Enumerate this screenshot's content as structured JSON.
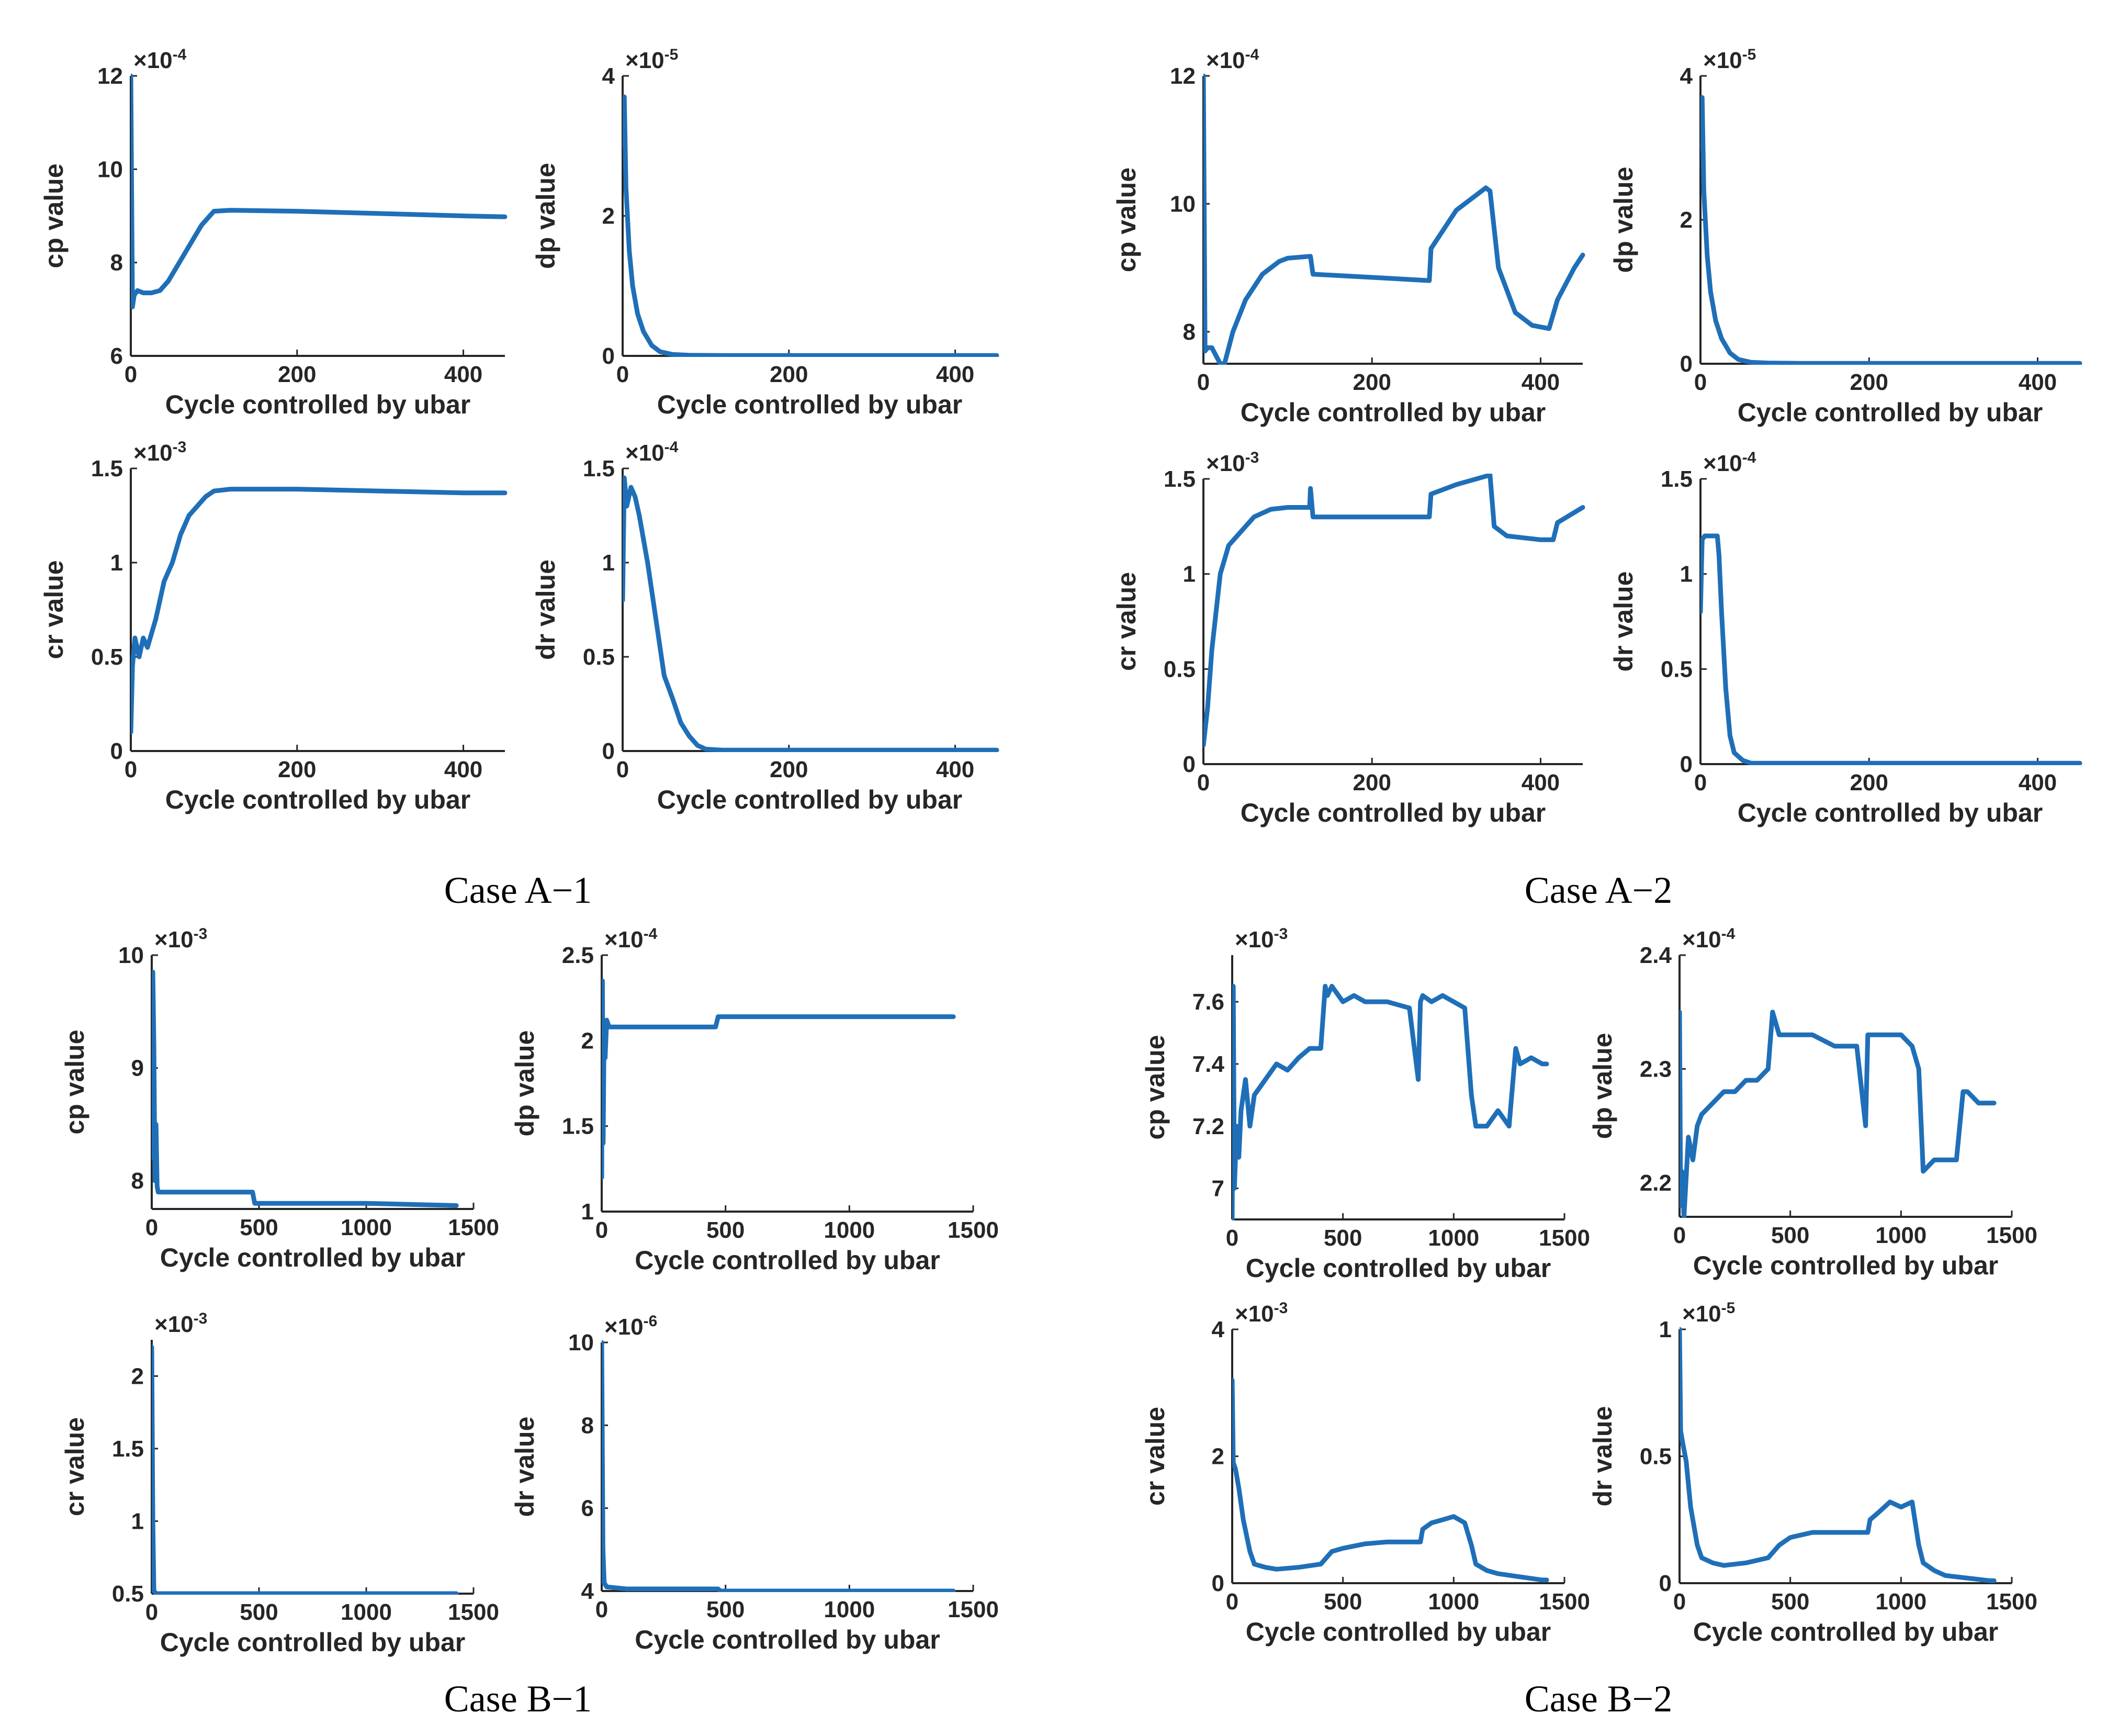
{
  "figure_captions": [
    "Case A−1",
    "Case A−2",
    "Case B−1",
    "Case B−2"
  ],
  "colors": {
    "series": "#1f6fb8",
    "axis": "#262626",
    "text": "#262626"
  },
  "chart_data": [
    {
      "panel": "A1-cp",
      "type": "line",
      "title": "",
      "xlabel": "Cycle controlled by ubar",
      "ylabel": "cp value",
      "exponent": "-4",
      "xlim": [
        0,
        450
      ],
      "ylim": [
        6,
        12
      ],
      "xticks": [
        0,
        200,
        400
      ],
      "yticks": [
        6,
        8,
        10,
        12
      ],
      "xtick_labels": [
        "0",
        "200",
        "400"
      ],
      "ytick_labels": [
        "6",
        "8",
        "10",
        "12"
      ],
      "x": [
        0,
        2,
        4,
        8,
        15,
        25,
        35,
        45,
        55,
        65,
        75,
        85,
        95,
        100,
        120,
        200,
        300,
        400,
        450
      ],
      "y": [
        12,
        7.05,
        7.3,
        7.4,
        7.35,
        7.35,
        7.4,
        7.6,
        7.9,
        8.2,
        8.5,
        8.8,
        9.0,
        9.1,
        9.12,
        9.1,
        9.05,
        9.0,
        8.98
      ]
    },
    {
      "panel": "A1-dp",
      "type": "line",
      "title": "",
      "xlabel": "Cycle controlled by ubar",
      "ylabel": "dp value",
      "exponent": "-5",
      "xlim": [
        0,
        450
      ],
      "ylim": [
        0,
        4
      ],
      "xticks": [
        0,
        200,
        400
      ],
      "yticks": [
        0,
        2,
        4
      ],
      "xtick_labels": [
        "0",
        "200",
        "400"
      ],
      "ytick_labels": [
        "0",
        "2",
        "4"
      ],
      "x": [
        0,
        2,
        4,
        8,
        12,
        18,
        25,
        35,
        45,
        60,
        80,
        120,
        200,
        300,
        450
      ],
      "y": [
        3.0,
        3.7,
        2.4,
        1.5,
        1.0,
        0.6,
        0.35,
        0.15,
        0.06,
        0.02,
        0.01,
        0.005,
        0.005,
        0.005,
        0.005
      ]
    },
    {
      "panel": "A1-cr",
      "type": "line",
      "title": "",
      "xlabel": "Cycle controlled by ubar",
      "ylabel": "cr value",
      "exponent": "-3",
      "xlim": [
        0,
        450
      ],
      "ylim": [
        0,
        1.5
      ],
      "xticks": [
        0,
        200,
        400
      ],
      "yticks": [
        0,
        0.5,
        1,
        1.5
      ],
      "xtick_labels": [
        "0",
        "200",
        "400"
      ],
      "ytick_labels": [
        "0",
        "0.5",
        "1",
        "1.5"
      ],
      "x": [
        0,
        2,
        5,
        10,
        15,
        20,
        30,
        40,
        50,
        60,
        70,
        80,
        90,
        100,
        120,
        200,
        300,
        400,
        450
      ],
      "y": [
        0.1,
        0.45,
        0.6,
        0.5,
        0.6,
        0.55,
        0.7,
        0.9,
        1.0,
        1.15,
        1.25,
        1.3,
        1.35,
        1.38,
        1.39,
        1.39,
        1.38,
        1.37,
        1.37
      ]
    },
    {
      "panel": "A1-dr",
      "type": "line",
      "title": "",
      "xlabel": "Cycle controlled by ubar",
      "ylabel": "dr value",
      "exponent": "-4",
      "xlim": [
        0,
        450
      ],
      "ylim": [
        0,
        1.5
      ],
      "xticks": [
        0,
        200,
        400
      ],
      "yticks": [
        0,
        0.5,
        1,
        1.5
      ],
      "xtick_labels": [
        "0",
        "200",
        "400"
      ],
      "ytick_labels": [
        "0",
        "0.5",
        "1",
        "1.5"
      ],
      "x": [
        0,
        2,
        5,
        10,
        15,
        20,
        30,
        40,
        50,
        60,
        70,
        80,
        90,
        100,
        120,
        200,
        300,
        450
      ],
      "y": [
        0.8,
        1.45,
        1.3,
        1.4,
        1.35,
        1.25,
        1.0,
        0.7,
        0.4,
        0.28,
        0.15,
        0.08,
        0.03,
        0.01,
        0.005,
        0.005,
        0.005,
        0.005
      ]
    },
    {
      "panel": "A2-cp",
      "type": "line",
      "title": "",
      "xlabel": "Cycle controlled by ubar",
      "ylabel": "cp value",
      "exponent": "-4",
      "xlim": [
        0,
        450
      ],
      "ylim": [
        7.5,
        12
      ],
      "xticks": [
        0,
        200,
        400
      ],
      "yticks": [
        8,
        10,
        12
      ],
      "xtick_labels": [
        "0",
        "200",
        "400"
      ],
      "ytick_labels": [
        "8",
        "10",
        "12"
      ],
      "x": [
        0,
        2,
        5,
        10,
        20,
        25,
        35,
        50,
        70,
        90,
        100,
        127,
        130,
        200,
        268,
        270,
        285,
        300,
        320,
        335,
        340,
        350,
        370,
        390,
        410,
        420,
        440,
        450
      ],
      "y": [
        12,
        7.7,
        7.75,
        7.75,
        7.5,
        7.5,
        8.0,
        8.5,
        8.9,
        9.1,
        9.15,
        9.18,
        8.9,
        8.85,
        8.8,
        9.3,
        9.6,
        9.9,
        10.1,
        10.25,
        10.2,
        9.0,
        8.3,
        8.1,
        8.05,
        8.5,
        9.0,
        9.2
      ]
    },
    {
      "panel": "A2-dp",
      "type": "line",
      "title": "",
      "xlabel": "Cycle controlled by ubar",
      "ylabel": "dp value",
      "exponent": "-5",
      "xlim": [
        0,
        450
      ],
      "ylim": [
        0,
        4
      ],
      "xticks": [
        0,
        200,
        400
      ],
      "yticks": [
        0,
        2,
        4
      ],
      "xtick_labels": [
        "0",
        "200",
        "400"
      ],
      "ytick_labels": [
        "0",
        "2",
        "4"
      ],
      "x": [
        0,
        2,
        4,
        8,
        12,
        18,
        25,
        35,
        45,
        60,
        80,
        120,
        200,
        300,
        450
      ],
      "y": [
        3.0,
        3.7,
        2.4,
        1.5,
        1.0,
        0.6,
        0.35,
        0.15,
        0.06,
        0.02,
        0.01,
        0.005,
        0.005,
        0.005,
        0.005
      ]
    },
    {
      "panel": "A2-cr",
      "type": "line",
      "title": "",
      "xlabel": "Cycle controlled by ubar",
      "ylabel": "cr value",
      "exponent": "-3",
      "xlim": [
        0,
        450
      ],
      "ylim": [
        0,
        1.5
      ],
      "xticks": [
        0,
        200,
        400
      ],
      "yticks": [
        0,
        0.5,
        1,
        1.5
      ],
      "xtick_labels": [
        "0",
        "200",
        "400"
      ],
      "ytick_labels": [
        "0",
        "0.5",
        "1",
        "1.5"
      ],
      "x": [
        0,
        5,
        10,
        20,
        30,
        40,
        60,
        80,
        100,
        126,
        127,
        130,
        200,
        268,
        270,
        300,
        340,
        345,
        360,
        400,
        415,
        420,
        450
      ],
      "y": [
        0.1,
        0.3,
        0.6,
        1.0,
        1.15,
        1.2,
        1.3,
        1.34,
        1.35,
        1.35,
        1.45,
        1.3,
        1.3,
        1.3,
        1.42,
        1.47,
        1.52,
        1.25,
        1.2,
        1.18,
        1.18,
        1.27,
        1.35
      ]
    },
    {
      "panel": "A2-dr",
      "type": "line",
      "title": "",
      "xlabel": "Cycle controlled by ubar",
      "ylabel": "dr value",
      "exponent": "-4",
      "xlim": [
        0,
        450
      ],
      "ylim": [
        0,
        1.5
      ],
      "xticks": [
        0,
        200,
        400
      ],
      "yticks": [
        0,
        0.5,
        1,
        1.5
      ],
      "xtick_labels": [
        "0",
        "200",
        "400"
      ],
      "ytick_labels": [
        "0",
        "0.5",
        "1",
        "1.5"
      ],
      "x": [
        0,
        2,
        5,
        10,
        20,
        22,
        25,
        30,
        35,
        40,
        50,
        60,
        100,
        200,
        300,
        450
      ],
      "y": [
        0.8,
        1.18,
        1.2,
        1.2,
        1.2,
        1.1,
        0.8,
        0.4,
        0.15,
        0.06,
        0.02,
        0.005,
        0.005,
        0.005,
        0.005,
        0.005
      ]
    },
    {
      "panel": "B1-cp",
      "type": "line",
      "title": "",
      "xlabel": "Cycle controlled by ubar",
      "ylabel": "cp value",
      "exponent": "-3",
      "xlim": [
        0,
        1500
      ],
      "ylim": [
        7.75,
        10
      ],
      "xticks": [
        0,
        500,
        1000,
        1500
      ],
      "yticks": [
        8,
        9,
        10
      ],
      "xtick_labels": [
        "0",
        "500",
        "1000",
        "1500"
      ],
      "ytick_labels": [
        "8",
        "9",
        "10"
      ],
      "x": [
        0,
        5,
        10,
        15,
        20,
        25,
        30,
        470,
        480,
        1000,
        1420
      ],
      "y": [
        8.2,
        9.85,
        9.2,
        8.0,
        8.5,
        7.95,
        7.9,
        7.9,
        7.8,
        7.8,
        7.78
      ]
    },
    {
      "panel": "B1-dp",
      "type": "line",
      "title": "",
      "xlabel": "Cycle controlled by ubar",
      "ylabel": "dp value",
      "exponent": "-4",
      "xlim": [
        0,
        1500
      ],
      "ylim": [
        1,
        2.5
      ],
      "xticks": [
        0,
        500,
        1000,
        1500
      ],
      "yticks": [
        1,
        1.5,
        2,
        2.5
      ],
      "xtick_labels": [
        "0",
        "500",
        "1000",
        "1500"
      ],
      "ytick_labels": [
        "1",
        "1.5",
        "2",
        "2.5"
      ],
      "x": [
        0,
        3,
        6,
        10,
        14,
        20,
        30,
        460,
        470,
        1000,
        1420
      ],
      "y": [
        1.2,
        2.35,
        1.4,
        2.1,
        1.9,
        2.12,
        2.08,
        2.08,
        2.14,
        2.14,
        2.14
      ]
    },
    {
      "panel": "B1-cr",
      "type": "line",
      "title": "",
      "xlabel": "Cycle controlled by ubar",
      "ylabel": "cr value",
      "exponent": "-3",
      "xlim": [
        0,
        1500
      ],
      "ylim": [
        0.5,
        2.25
      ],
      "xticks": [
        0,
        500,
        1000,
        1500
      ],
      "yticks": [
        0.5,
        1,
        1.5,
        2
      ],
      "xtick_labels": [
        "0",
        "500",
        "1000",
        "1500"
      ],
      "ytick_labels": [
        "0.5",
        "1",
        "1.5",
        "2"
      ],
      "x": [
        0,
        5,
        10,
        20,
        50,
        500,
        1000,
        1420
      ],
      "y": [
        2.2,
        1.0,
        0.52,
        0.5,
        0.5,
        0.5,
        0.5,
        0.5
      ]
    },
    {
      "panel": "B1-dr",
      "type": "line",
      "title": "",
      "xlabel": "Cycle controlled by ubar",
      "ylabel": "dr value",
      "exponent": "-6",
      "xlim": [
        0,
        1500
      ],
      "ylim": [
        4,
        10
      ],
      "xticks": [
        0,
        500,
        1000,
        1500
      ],
      "yticks": [
        4,
        6,
        8,
        10
      ],
      "xtick_labels": [
        "0",
        "500",
        "1000",
        "1500"
      ],
      "ytick_labels": [
        "4",
        "6",
        "8",
        "10"
      ],
      "x": [
        0,
        5,
        10,
        20,
        100,
        470,
        480,
        1000,
        1420
      ],
      "y": [
        10,
        5.0,
        4.2,
        4.1,
        4.05,
        4.05,
        4.0,
        4.0,
        4.0
      ]
    },
    {
      "panel": "B2-cp",
      "type": "line",
      "title": "",
      "xlabel": "Cycle controlled by ubar",
      "ylabel": "cp value",
      "exponent": "-3",
      "xlim": [
        0,
        1500
      ],
      "ylim": [
        6.9,
        7.75
      ],
      "xticks": [
        0,
        500,
        1000,
        1500
      ],
      "yticks": [
        7,
        7.2,
        7.4,
        7.6
      ],
      "xtick_labels": [
        "0",
        "500",
        "1000",
        "1500"
      ],
      "ytick_labels": [
        "7",
        "7.2",
        "7.4",
        "7.6"
      ],
      "x": [
        0,
        5,
        10,
        20,
        30,
        40,
        60,
        80,
        100,
        150,
        200,
        250,
        300,
        350,
        400,
        420,
        430,
        450,
        500,
        550,
        600,
        700,
        800,
        840,
        850,
        860,
        900,
        950,
        1000,
        1050,
        1080,
        1100,
        1150,
        1200,
        1250,
        1280,
        1300,
        1350,
        1400,
        1420
      ],
      "y": [
        6.9,
        7.65,
        7.0,
        7.2,
        7.1,
        7.25,
        7.35,
        7.2,
        7.3,
        7.35,
        7.4,
        7.38,
        7.42,
        7.45,
        7.45,
        7.65,
        7.62,
        7.65,
        7.6,
        7.62,
        7.6,
        7.6,
        7.58,
        7.35,
        7.6,
        7.62,
        7.6,
        7.62,
        7.6,
        7.58,
        7.3,
        7.2,
        7.2,
        7.25,
        7.2,
        7.45,
        7.4,
        7.42,
        7.4,
        7.4
      ]
    },
    {
      "panel": "B2-dp",
      "type": "line",
      "title": "",
      "xlabel": "Cycle controlled by ubar",
      "ylabel": "dp value",
      "exponent": "-4",
      "xlim": [
        0,
        1500
      ],
      "ylim": [
        2.17,
        2.4
      ],
      "xticks": [
        0,
        500,
        1000,
        1500
      ],
      "yticks": [
        2.2,
        2.3,
        2.4
      ],
      "xtick_labels": [
        "0",
        "500",
        "1000",
        "1500"
      ],
      "ytick_labels": [
        "2.2",
        "2.3",
        "2.4"
      ],
      "x": [
        0,
        5,
        10,
        20,
        40,
        60,
        80,
        100,
        150,
        200,
        250,
        300,
        350,
        400,
        420,
        450,
        500,
        600,
        700,
        800,
        840,
        850,
        900,
        1000,
        1050,
        1080,
        1100,
        1150,
        1200,
        1250,
        1280,
        1300,
        1350,
        1400,
        1420
      ],
      "y": [
        2.35,
        2.18,
        2.21,
        2.17,
        2.24,
        2.22,
        2.25,
        2.26,
        2.27,
        2.28,
        2.28,
        2.29,
        2.29,
        2.3,
        2.35,
        2.33,
        2.33,
        2.33,
        2.32,
        2.32,
        2.25,
        2.33,
        2.33,
        2.33,
        2.32,
        2.3,
        2.21,
        2.22,
        2.22,
        2.22,
        2.28,
        2.28,
        2.27,
        2.27,
        2.27
      ]
    },
    {
      "panel": "B2-cr",
      "type": "line",
      "title": "",
      "xlabel": "Cycle controlled by ubar",
      "ylabel": "cr value",
      "exponent": "-3",
      "xlim": [
        0,
        1500
      ],
      "ylim": [
        0,
        4
      ],
      "xticks": [
        0,
        500,
        1000,
        1500
      ],
      "yticks": [
        0,
        2,
        4
      ],
      "xtick_labels": [
        "0",
        "500",
        "1000",
        "1500"
      ],
      "ytick_labels": [
        "0",
        "2",
        "4"
      ],
      "x": [
        0,
        5,
        15,
        30,
        50,
        80,
        100,
        150,
        200,
        300,
        400,
        450,
        500,
        600,
        700,
        800,
        850,
        860,
        900,
        950,
        1000,
        1050,
        1080,
        1100,
        1150,
        1200,
        1300,
        1400,
        1420
      ],
      "y": [
        3.2,
        1.9,
        1.8,
        1.5,
        1.0,
        0.5,
        0.3,
        0.25,
        0.22,
        0.25,
        0.3,
        0.5,
        0.55,
        0.62,
        0.65,
        0.65,
        0.65,
        0.85,
        0.95,
        1.0,
        1.05,
        0.95,
        0.6,
        0.3,
        0.2,
        0.15,
        0.1,
        0.05,
        0.05
      ]
    },
    {
      "panel": "B2-dr",
      "type": "line",
      "title": "",
      "xlabel": "Cycle controlled by ubar",
      "ylabel": "dr value",
      "exponent": "-5",
      "xlim": [
        0,
        1500
      ],
      "ylim": [
        0,
        1
      ],
      "xticks": [
        0,
        500,
        1000,
        1500
      ],
      "yticks": [
        0,
        0.5,
        1
      ],
      "xtick_labels": [
        "0",
        "500",
        "1000",
        "1500"
      ],
      "ytick_labels": [
        "0",
        "0.5",
        "1"
      ],
      "x": [
        0,
        5,
        15,
        30,
        50,
        80,
        100,
        150,
        200,
        300,
        400,
        450,
        500,
        600,
        700,
        800,
        850,
        860,
        900,
        950,
        1000,
        1050,
        1080,
        1100,
        1150,
        1200,
        1300,
        1400,
        1420
      ],
      "y": [
        1.0,
        0.6,
        0.55,
        0.48,
        0.3,
        0.15,
        0.1,
        0.08,
        0.07,
        0.08,
        0.1,
        0.15,
        0.18,
        0.2,
        0.2,
        0.2,
        0.2,
        0.25,
        0.28,
        0.32,
        0.3,
        0.32,
        0.15,
        0.08,
        0.05,
        0.03,
        0.02,
        0.01,
        0.01
      ]
    }
  ]
}
